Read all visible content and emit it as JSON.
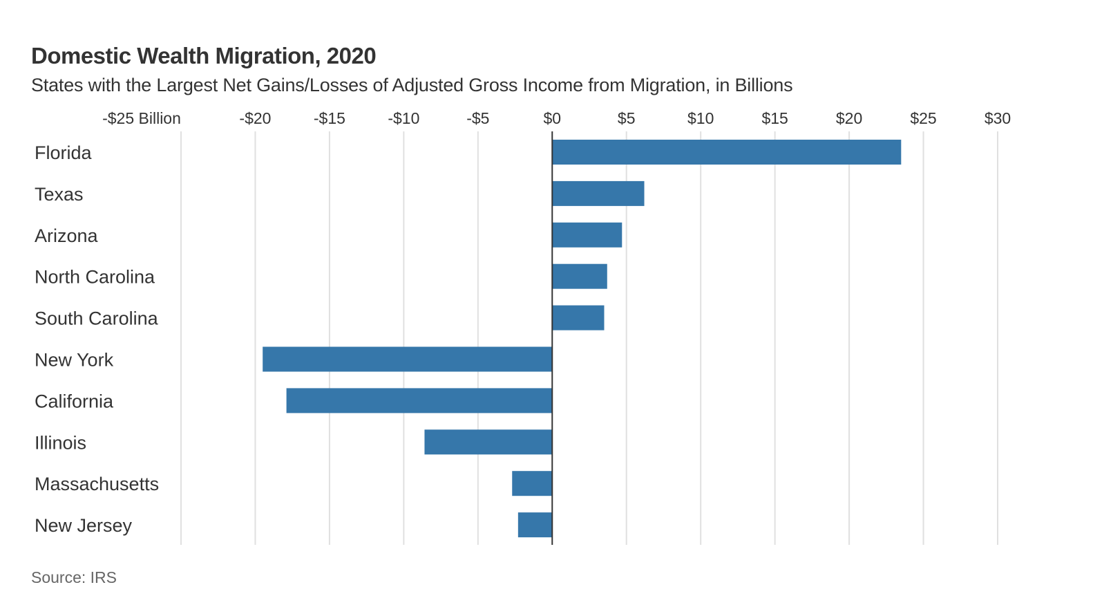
{
  "chart_data": {
    "type": "bar",
    "orientation": "horizontal",
    "title": "Domestic Wealth Migration, 2020",
    "subtitle": "States with the Largest Net Gains/Losses of Adjusted Gross Income from Migration, in Billions",
    "source": "Source: IRS",
    "xlabel": "",
    "ylabel": "",
    "xlim": [
      -25,
      30
    ],
    "xticks": [
      -25,
      -20,
      -15,
      -10,
      -5,
      0,
      5,
      10,
      15,
      20,
      25,
      30
    ],
    "xtick_labels": [
      "-$25 Billion",
      "-$20",
      "-$15",
      "-$10",
      "-$5",
      "$0",
      "$5",
      "$10",
      "$15",
      "$20",
      "$25",
      "$30"
    ],
    "grid": true,
    "legend": "none",
    "categories": [
      "Florida",
      "Texas",
      "Arizona",
      "North Carolina",
      "South Carolina",
      "New York",
      "California",
      "Illinois",
      "Massachusetts",
      "New Jersey"
    ],
    "values": [
      23.5,
      6.2,
      4.7,
      3.7,
      3.5,
      -19.5,
      -17.9,
      -8.6,
      -2.7,
      -2.3
    ],
    "bar_color": "#3677aa",
    "grid_color": "#e0e0e0",
    "zero_line_color": "#333333"
  }
}
